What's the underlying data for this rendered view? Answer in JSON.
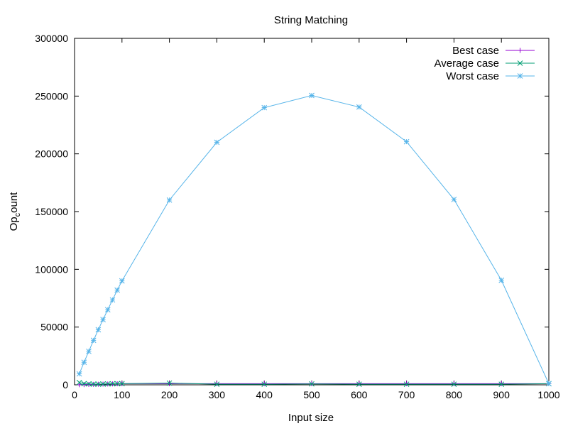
{
  "chart_data": {
    "type": "line",
    "title": "String Matching",
    "xlabel": "Input size",
    "ylabel": "Op_count",
    "ylabel_parts": {
      "main": "Op",
      "sub": "c",
      "rest": "ount"
    },
    "xlim": [
      0,
      1000
    ],
    "ylim": [
      0,
      300000
    ],
    "xticks": [
      0,
      100,
      200,
      300,
      400,
      500,
      600,
      700,
      800,
      900,
      1000
    ],
    "yticks": [
      0,
      50000,
      100000,
      150000,
      200000,
      250000,
      300000
    ],
    "grid": false,
    "legend_position": "top-right",
    "x": [
      10,
      20,
      30,
      40,
      50,
      60,
      70,
      80,
      90,
      100,
      200,
      300,
      400,
      500,
      600,
      700,
      800,
      900,
      1000
    ],
    "series": [
      {
        "name": "Best case",
        "color": "#9400D3",
        "marker": "plus",
        "values": [
          100,
          200,
          300,
          400,
          500,
          600,
          700,
          800,
          900,
          1000,
          1000,
          1000,
          1000,
          1000,
          1000,
          1000,
          1000,
          1000,
          1000
        ]
      },
      {
        "name": "Average case",
        "color": "#009E73",
        "marker": "cross",
        "values": [
          2000,
          1000,
          800,
          600,
          600,
          700,
          800,
          900,
          1000,
          1000,
          1500,
          500,
          500,
          800,
          500,
          500,
          500,
          500,
          1000
        ]
      },
      {
        "name": "Worst case",
        "color": "#56B4E9",
        "marker": "star",
        "values": [
          9500,
          19500,
          29000,
          38500,
          47700,
          56500,
          65000,
          73500,
          82000,
          90000,
          160000,
          210000,
          240000,
          250500,
          240500,
          210500,
          160500,
          90500,
          1000
        ]
      }
    ]
  }
}
